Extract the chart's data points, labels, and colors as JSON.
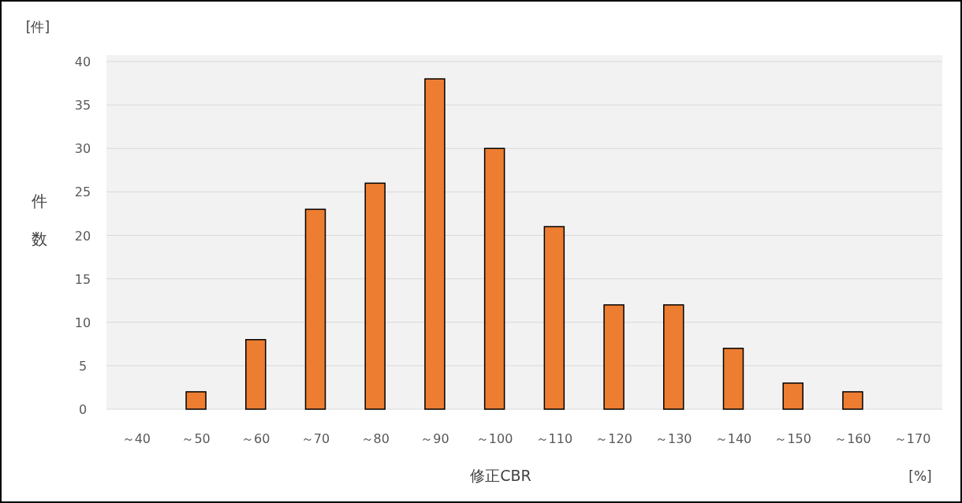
{
  "chart_data": {
    "type": "bar",
    "xlabel": "修正CBR",
    "ylabel": "件数",
    "annotations": [
      "[件]",
      "[%]"
    ],
    "categories": [
      "～40",
      "～50",
      "～60",
      "～70",
      "～80",
      "～90",
      "～100",
      "～110",
      "～120",
      "～130",
      "～140",
      "～150",
      "～160",
      "～170"
    ],
    "values": [
      0,
      2,
      8,
      23,
      26,
      38,
      30,
      21,
      12,
      12,
      7,
      3,
      2,
      0
    ],
    "color": "#ed7d31",
    "ylim": [
      0,
      40
    ],
    "yticks": [
      0,
      5,
      10,
      15,
      20,
      25,
      30,
      35,
      40
    ],
    "grid": "y"
  }
}
